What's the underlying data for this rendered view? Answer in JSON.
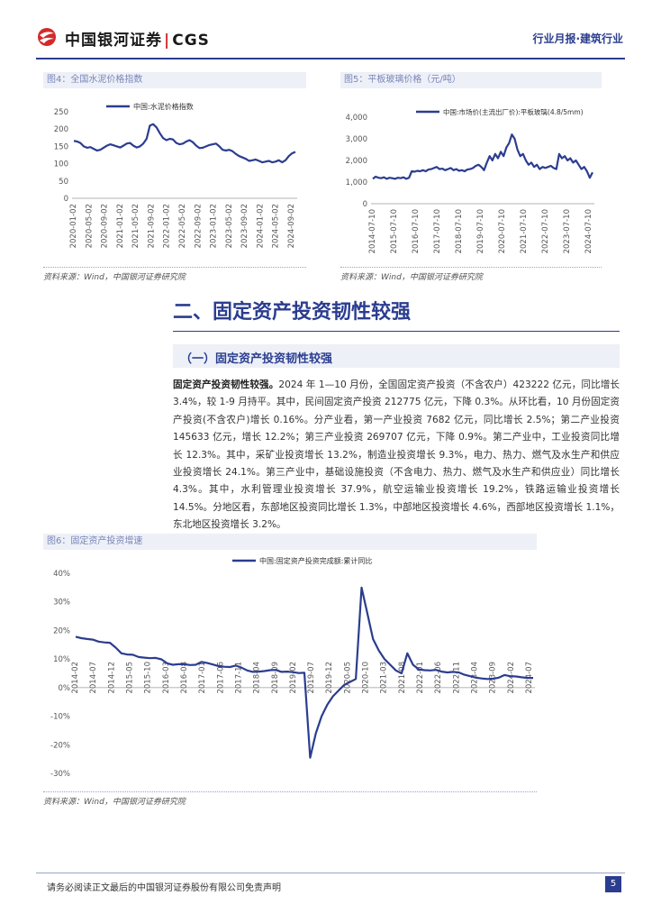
{
  "header": {
    "logo_text": "中国银河证券",
    "logo_separator": "|",
    "logo_brand": "CGS",
    "report_type": "行业月报·建筑行业",
    "brand_color": "#2b3d8f",
    "logo_red": "#d32a2a"
  },
  "figures": {
    "fig4": {
      "title": "图4：全国水泥价格指数",
      "source": "资料来源：Wind，中国银河证券研究院"
    },
    "fig5": {
      "title": "图5：平板玻璃价格（元/吨）",
      "source": "资料来源：Wind，中国银河证券研究院"
    },
    "fig6": {
      "title": "图6：固定资产投资增速",
      "source": "资料来源：Wind，中国银河证券研究院"
    }
  },
  "section": {
    "title": "二、固定资产投资韧性较强",
    "subsection": "（一）固定资产投资韧性较强",
    "lead": "固定资产投资韧性较强。",
    "body": "2024 年 1—10 月份，全国固定资产投资（不含农户）423222 亿元，同比增长 3.4%，较 1-9 月持平。其中，民间固定资产投资 212775 亿元，下降 0.3%。从环比看，10 月份固定资产投资(不含农户)增长 0.16%。分产业看，第一产业投资 7682 亿元，同比增长 2.5%；第二产业投资 145633 亿元，增长 12.2%；第三产业投资 269707 亿元，下降 0.9%。第二产业中，工业投资同比增长 12.3%。其中，采矿业投资增长 13.2%，制造业投资增长 9.3%，电力、热力、燃气及水生产和供应业投资增长 24.1%。第三产业中，基础设施投资（不含电力、热力、燃气及水生产和供应业）同比增长 4.3%。其中，水利管理业投资增长 37.9%，航空运输业投资增长 19.2%，铁路运输业投资增长 14.5%。分地区看，东部地区投资同比增长 1.3%，中部地区投资增长 4.6%，西部地区投资增长 1.1%，东北地区投资增长 3.2%。"
  },
  "footer": {
    "disclaimer": "请务必阅读正文最后的中国银河证券股份有限公司免责声明",
    "page_number": "5"
  },
  "chart_data": [
    {
      "type": "line",
      "title": "",
      "series": [
        {
          "name": "中国:水泥价格指数",
          "color": "#2b3d8f",
          "values": [
            166,
            164,
            160,
            150,
            146,
            148,
            143,
            138,
            140,
            146,
            152,
            156,
            153,
            150,
            147,
            152,
            158,
            160,
            152,
            147,
            150,
            158,
            172,
            210,
            214,
            205,
            188,
            174,
            168,
            172,
            170,
            160,
            156,
            158,
            164,
            168,
            162,
            152,
            145,
            146,
            150,
            154,
            156,
            158,
            150,
            140,
            138,
            140,
            136,
            128,
            122,
            118,
            114,
            108,
            110,
            112,
            108,
            104,
            106,
            108,
            104,
            106,
            110,
            104,
            110,
            122,
            130,
            134
          ]
        }
      ],
      "x_tick_labels": [
        "2020-01-02",
        "2020-05-02",
        "2020-09-02",
        "2021-01-02",
        "2021-05-02",
        "2021-09-02",
        "2022-01-02",
        "2022-05-02",
        "2022-09-02",
        "2023-01-02",
        "2023-05-02",
        "2023-09-02",
        "2024-01-02",
        "2024-05-02",
        "2024-09-02"
      ],
      "ylim": [
        0,
        250
      ],
      "y_ticks": [
        0,
        50,
        100,
        150,
        200,
        250
      ],
      "legend": "top-left"
    },
    {
      "type": "line",
      "title": "",
      "series": [
        {
          "name": "中国:市场价(主流出厂价):平板玻璃(4.8/5mm)",
          "color": "#2b3d8f",
          "values": [
            1150,
            1250,
            1200,
            1180,
            1220,
            1150,
            1200,
            1180,
            1150,
            1200,
            1180,
            1220,
            1150,
            1200,
            1500,
            1480,
            1520,
            1500,
            1550,
            1500,
            1580,
            1600,
            1650,
            1700,
            1600,
            1620,
            1550,
            1600,
            1650,
            1550,
            1600,
            1520,
            1550,
            1500,
            1580,
            1600,
            1650,
            1750,
            1800,
            1700,
            1550,
            1900,
            2200,
            2000,
            2300,
            2100,
            2400,
            2200,
            2600,
            2800,
            3200,
            3000,
            2500,
            2200,
            2300,
            2000,
            1800,
            1900,
            1700,
            1800,
            1600,
            1700,
            1650,
            1700,
            1750,
            1650,
            1600,
            2300,
            2100,
            2200,
            2000,
            2100,
            1900,
            2000,
            1800,
            1600,
            1700,
            1500,
            1200,
            1450
          ]
        }
      ],
      "x_tick_labels": [
        "2014-07-10",
        "2015-07-10",
        "2016-07-10",
        "2017-07-10",
        "2018-07-10",
        "2019-07-10",
        "2020-07-10",
        "2021-07-10",
        "2022-07-10",
        "2023-07-10",
        "2024-07-10"
      ],
      "ylim": [
        0,
        4000
      ],
      "y_ticks": [
        "0",
        "1,000",
        "2,000",
        "3,000",
        "4,000"
      ],
      "legend": "top-left"
    },
    {
      "type": "line",
      "title": "",
      "series": [
        {
          "name": "中国:固定资产投资完成额:累计同比",
          "color": "#2b3d8f",
          "values": [
            17.8,
            17.3,
            17,
            16.8,
            16.1,
            15.8,
            15.7,
            14,
            12,
            11.6,
            11.5,
            10.7,
            10.5,
            10.3,
            10.4,
            9.9,
            8.5,
            8,
            8.2,
            8.2,
            7.9,
            8,
            9,
            8.6,
            8.1,
            7.5,
            7.3,
            7.2,
            7.7,
            7,
            6,
            5.5,
            5.6,
            5.8,
            6.1,
            6.2,
            5.5,
            5.6,
            5.4,
            5.1,
            5.2,
            -24.5,
            -16,
            -10,
            -6,
            -3,
            -1,
            1,
            2,
            3,
            35,
            26,
            17,
            13,
            10,
            8,
            6,
            5,
            12,
            8,
            6.4,
            6.1,
            6,
            6.2,
            5.6,
            5.3,
            5.5,
            5.3,
            4.5,
            4,
            3.5,
            3.2,
            3,
            3.1,
            3.5,
            4.4,
            4,
            3.9,
            3.6,
            3.4,
            3.4
          ]
        }
      ],
      "x_tick_labels": [
        "2014-02",
        "2014-07",
        "2014-12",
        "2015-05",
        "2015-10",
        "2016-03",
        "2016-08",
        "2017-01",
        "2017-06",
        "2017-11",
        "2018-04",
        "2018-09",
        "2019-02",
        "2019-07",
        "2019-12",
        "2020-05",
        "2020-10",
        "2021-03",
        "2021-08",
        "2022-01",
        "2022-06",
        "2022-11",
        "2023-04",
        "2023-09",
        "2024-02",
        "2024-07"
      ],
      "ylim": [
        -30,
        40
      ],
      "y_ticks": [
        "-30%",
        "-20%",
        "-10%",
        "0%",
        "10%",
        "20%",
        "30%",
        "40%"
      ],
      "legend": "top-center"
    }
  ]
}
